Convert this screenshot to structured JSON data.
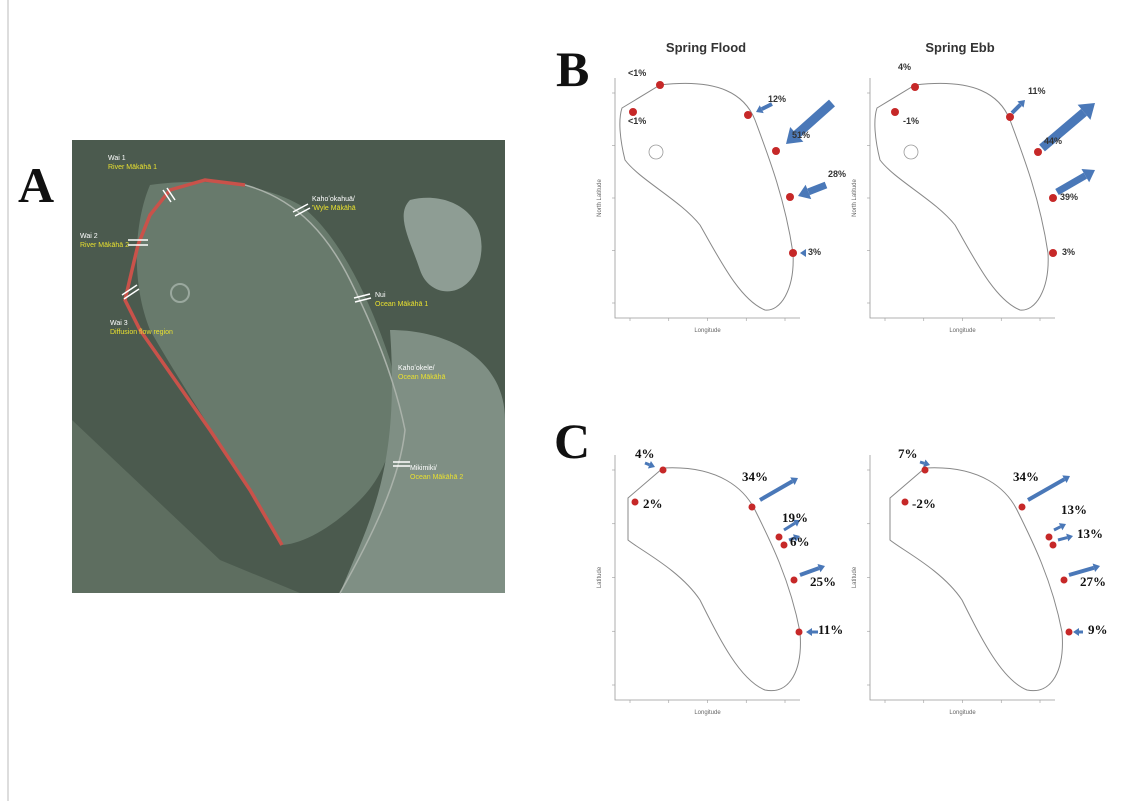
{
  "panels": {
    "a": "A",
    "b": "B",
    "c": "C"
  },
  "map": {
    "labels": [
      [
        "Wai 1",
        "River Mākāhā 1"
      ],
      [
        "Kahoʻokahuā/",
        "'Wyle Mākāhā"
      ],
      [
        "Wai 2",
        "River Mākāhā 2"
      ],
      [
        "Wai 3",
        "Diffusion flow region"
      ],
      [
        "Nui",
        "Ocean Mākāhā 1"
      ],
      [
        "Kahoʻokele/",
        "Ocean Mākāhā"
      ],
      [
        "Mikimiki/",
        "Ocean Mākāhā 2"
      ]
    ]
  },
  "panel_b": {
    "x_label": "Longitude",
    "y_label": "North Latitude",
    "plots": [
      {
        "title": "Spring Flood",
        "labels": [
          "<1%",
          "<1%",
          "12%",
          "51%",
          "28%",
          "3%"
        ]
      },
      {
        "title": "Spring Ebb",
        "labels": [
          "4%",
          "-1%",
          "11%",
          "44%",
          "39%",
          "3%"
        ]
      }
    ]
  },
  "panel_c": {
    "x_label": "Longitude",
    "y_label": "Latitude",
    "plots": [
      {
        "labels": [
          "4%",
          "2%",
          "34%",
          "19%",
          "6%",
          "25%",
          "11%"
        ]
      },
      {
        "labels": [
          "7%",
          "-2%",
          "34%",
          "13%",
          "13%",
          "27%",
          "9%"
        ]
      }
    ]
  }
}
